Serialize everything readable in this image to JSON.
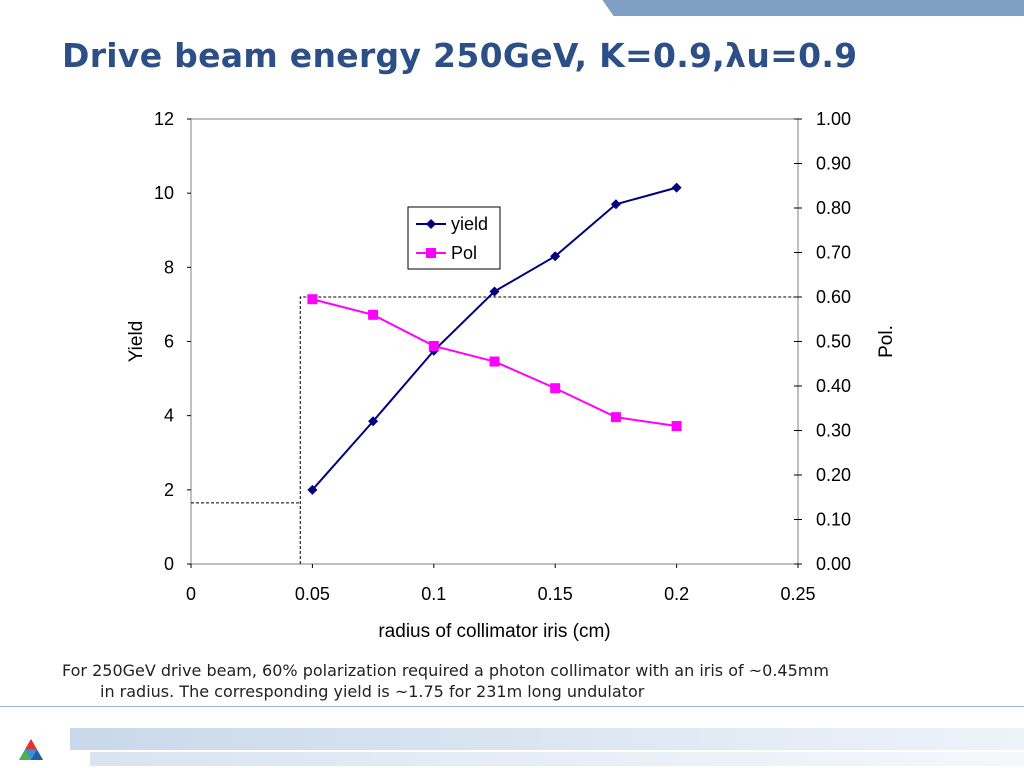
{
  "slide": {
    "title": "Drive beam energy 250GeV, K=0.9,λu=0.9",
    "caption_line1": "For 250GeV drive beam, 60% polarization required a photon collimator with an iris of ~0.45mm",
    "caption_line2": "in radius.  The corresponding yield is ~1.75 for 231m long undulator"
  },
  "colors": {
    "title": "#2c4f87",
    "yield_series": "#000080",
    "pol_series": "#ff00ff",
    "accent_bar": "#7f9fc3"
  },
  "chart_data": {
    "type": "line",
    "xlabel": "radius of collimator iris (cm)",
    "ylabel": "Yield",
    "y2label": "Pol.",
    "xlim": [
      0,
      0.25
    ],
    "ylim": [
      0,
      12
    ],
    "y2lim": [
      0,
      1.0
    ],
    "x_ticks": [
      "0",
      "0.05",
      "0.1",
      "0.15",
      "0.2",
      "0.25"
    ],
    "y_ticks": [
      "0",
      "2",
      "4",
      "6",
      "8",
      "10",
      "12"
    ],
    "y2_ticks": [
      "0.00",
      "0.10",
      "0.20",
      "0.30",
      "0.40",
      "0.50",
      "0.60",
      "0.70",
      "0.80",
      "0.90",
      "1.00"
    ],
    "grid": false,
    "legend_position": "upper-middle",
    "series": [
      {
        "name": "yield",
        "axis": "left",
        "marker": "diamond",
        "color": "#000080",
        "x": [
          0.05,
          0.075,
          0.1,
          0.125,
          0.15,
          0.175,
          0.2
        ],
        "y": [
          2.0,
          3.85,
          5.75,
          7.35,
          8.3,
          9.7,
          10.15
        ]
      },
      {
        "name": "Pol",
        "axis": "right",
        "marker": "square",
        "color": "#ff00ff",
        "x": [
          0.05,
          0.075,
          0.1,
          0.125,
          0.15,
          0.175,
          0.2
        ],
        "y": [
          0.595,
          0.56,
          0.49,
          0.455,
          0.395,
          0.33,
          0.31
        ]
      }
    ],
    "reference_lines": [
      {
        "axis": "left",
        "x": 0.045,
        "y": 1.65
      },
      {
        "axis": "right",
        "x": 0.045,
        "y": 0.6
      }
    ]
  }
}
